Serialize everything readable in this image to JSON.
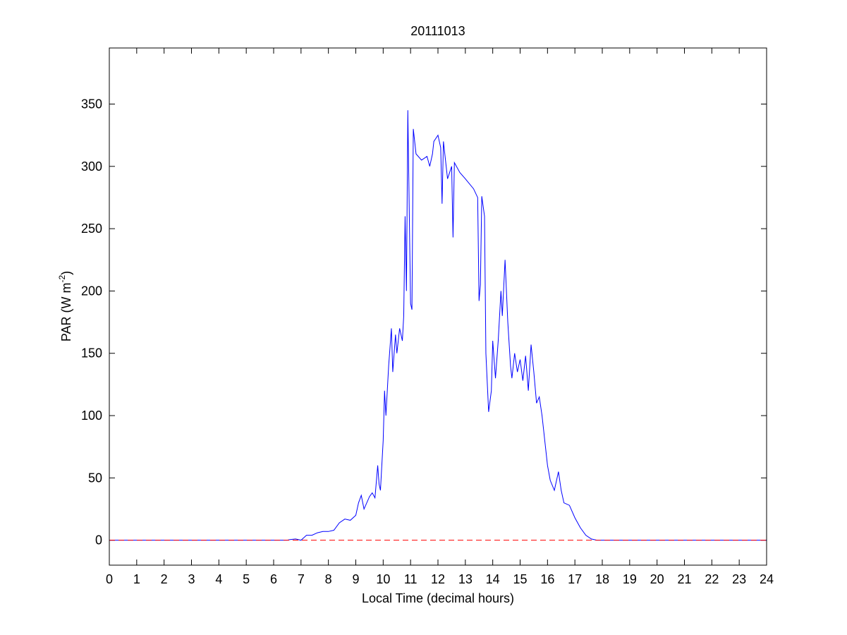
{
  "chart_data": {
    "type": "line",
    "title": "20111013",
    "xlabel": "Local Time (decimal hours)",
    "ylabel": [
      "PAR (W m",
      "-2",
      ")"
    ],
    "xlim": [
      0,
      24
    ],
    "xticks": [
      0,
      1,
      2,
      3,
      4,
      5,
      6,
      7,
      8,
      9,
      10,
      11,
      12,
      13,
      14,
      15,
      16,
      17,
      18,
      19,
      20,
      21,
      22,
      23,
      24
    ],
    "ylim": [
      -20,
      395
    ],
    "yticks": [
      0,
      50,
      100,
      150,
      200,
      250,
      300,
      350
    ],
    "grid": false,
    "series": [
      {
        "color": "#0000ff",
        "dash": false,
        "x": [
          0,
          6.5,
          6.6,
          6.8,
          7.0,
          7.2,
          7.4,
          7.6,
          7.8,
          8.0,
          8.2,
          8.4,
          8.6,
          8.8,
          9.0,
          9.1,
          9.2,
          9.3,
          9.5,
          9.6,
          9.7,
          9.8,
          9.85,
          9.9,
          10.0,
          10.05,
          10.1,
          10.2,
          10.3,
          10.35,
          10.45,
          10.5,
          10.6,
          10.7,
          10.75,
          10.8,
          10.85,
          10.9,
          11.0,
          11.05,
          11.1,
          11.2,
          11.4,
          11.6,
          11.7,
          11.8,
          11.85,
          12.0,
          12.1,
          12.15,
          12.2,
          12.3,
          12.35,
          12.5,
          12.55,
          12.6,
          12.8,
          13.0,
          13.3,
          13.45,
          13.5,
          13.55,
          13.6,
          13.7,
          13.75,
          13.85,
          13.95,
          14.0,
          14.1,
          14.2,
          14.3,
          14.35,
          14.45,
          14.55,
          14.65,
          14.7,
          14.8,
          14.9,
          15.0,
          15.1,
          15.2,
          15.3,
          15.4,
          15.5,
          15.6,
          15.7,
          15.8,
          15.9,
          16.0,
          16.1,
          16.25,
          16.4,
          16.5,
          16.6,
          16.8,
          17.0,
          17.2,
          17.4,
          17.6,
          17.8,
          24
        ],
        "values": [
          0,
          0,
          0.5,
          1,
          0,
          4,
          4,
          6,
          7,
          7,
          8,
          14,
          17,
          16,
          20,
          30,
          36,
          25,
          35,
          38,
          34,
          60,
          45,
          40,
          80,
          120,
          100,
          140,
          170,
          135,
          165,
          150,
          170,
          160,
          180,
          260,
          200,
          345,
          190,
          185,
          330,
          310,
          305,
          308,
          300,
          310,
          320,
          325,
          315,
          270,
          320,
          300,
          290,
          300,
          243,
          303,
          295,
          290,
          282,
          275,
          192,
          205,
          276,
          260,
          150,
          103,
          120,
          160,
          130,
          160,
          200,
          180,
          225,
          175,
          140,
          130,
          150,
          135,
          145,
          128,
          148,
          120,
          157,
          135,
          110,
          115,
          100,
          80,
          60,
          48,
          40,
          55,
          40,
          30,
          28,
          18,
          10,
          4,
          1,
          0,
          0
        ]
      },
      {
        "color": "#ff0000",
        "dash": true,
        "x": [
          0,
          24
        ],
        "values": [
          0,
          0
        ]
      }
    ]
  }
}
